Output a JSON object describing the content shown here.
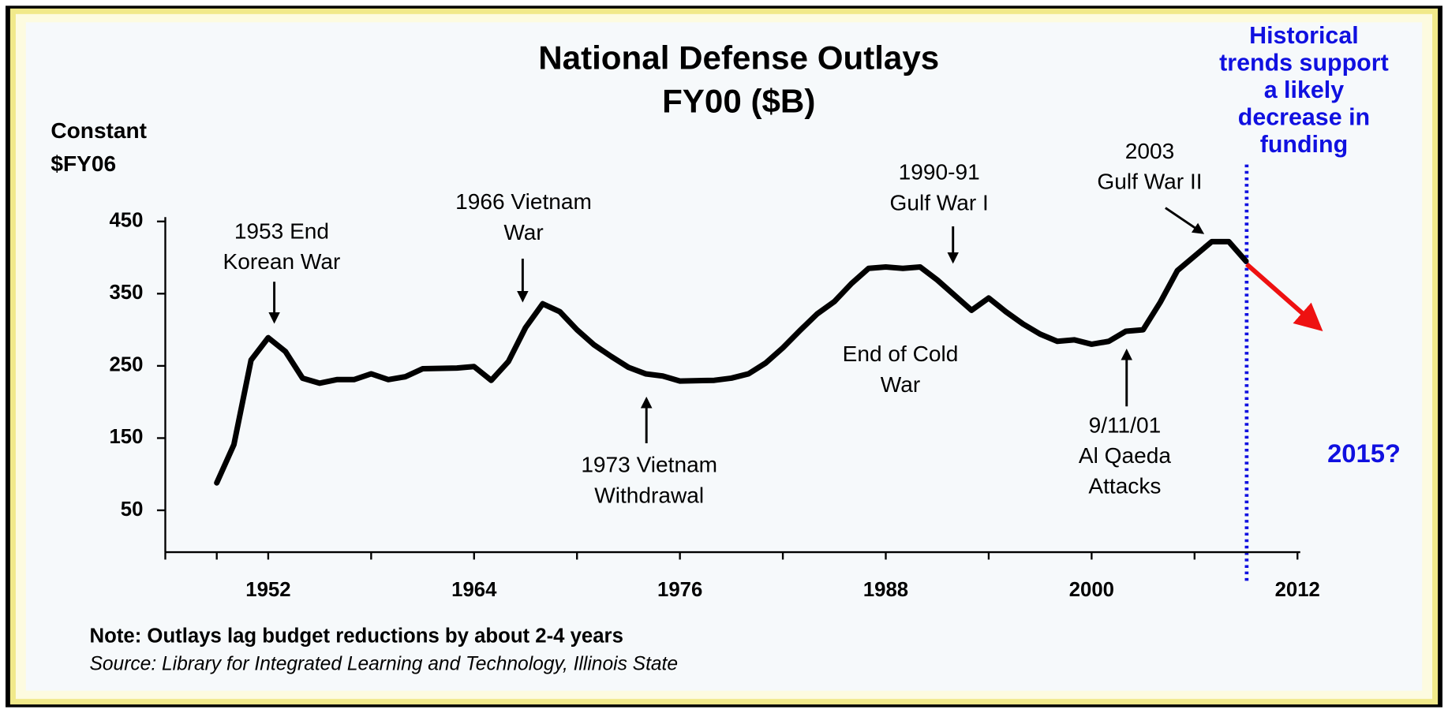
{
  "chart_data": {
    "type": "line",
    "title": "National Defense Outlays",
    "subtitle": "FY00 ($B)",
    "ylabel": [
      "Constant",
      "$FY06"
    ],
    "x": [
      1949,
      1950,
      1951,
      1952,
      1953,
      1954,
      1955,
      1956,
      1957,
      1958,
      1959,
      1960,
      1961,
      1963,
      1964,
      1965,
      1966,
      1967,
      1968,
      1969,
      1970,
      1971,
      1972,
      1973,
      1974,
      1975,
      1976,
      1978,
      1979,
      1980,
      1981,
      1982,
      1983,
      1984,
      1985,
      1986,
      1987,
      1988,
      1989,
      1990,
      1991,
      1993,
      1994,
      1995,
      1996,
      1997,
      1998,
      1999,
      2000,
      2001,
      2002,
      2003,
      2004,
      2005,
      2007,
      2008,
      2009
    ],
    "series": [
      {
        "name": "National Defense Outlays",
        "color": "#000000",
        "values": [
          88,
          141,
          258,
          289,
          270,
          233,
          226,
          231,
          231,
          239,
          231,
          235,
          246,
          247,
          249,
          230,
          256,
          303,
          336,
          325,
          300,
          279,
          263,
          248,
          239,
          236,
          229,
          230,
          233,
          239,
          254,
          275,
          299,
          322,
          339,
          364,
          385,
          387,
          385,
          387,
          369,
          327,
          344,
          325,
          308,
          294,
          284,
          286,
          280,
          284,
          298,
          300,
          338,
          382,
          422,
          422,
          395
        ]
      }
    ],
    "xlim": [
      1946,
      2012
    ],
    "xticks": [
      1952,
      1964,
      1976,
      1988,
      2000,
      2012
    ],
    "ylim": [
      -8,
      456
    ],
    "yticks": [
      50,
      150,
      250,
      350,
      450
    ],
    "annotations": [
      {
        "text": [
          "1953 End",
          "Korean War"
        ]
      },
      {
        "text": [
          "1966 Vietnam",
          "War"
        ]
      },
      {
        "text": [
          "1973 Vietnam",
          "Withdrawal"
        ]
      },
      {
        "text": [
          "End of Cold",
          "War"
        ]
      },
      {
        "text": [
          "1990-91",
          "Gulf War I"
        ]
      },
      {
        "text": [
          "2003",
          "Gulf War II"
        ]
      },
      {
        "text": [
          "9/11/01",
          "Al Qaeda",
          "Attacks"
        ]
      }
    ],
    "forecast_note": [
      "Historical",
      "trends support",
      "a likely",
      "decrease in",
      "funding"
    ],
    "forecast_label": "2015?",
    "note": "Note: Outlays lag budget reductions by about 2-4 years",
    "source": "Source: Library for Integrated Learning and Technology, Illinois State"
  }
}
